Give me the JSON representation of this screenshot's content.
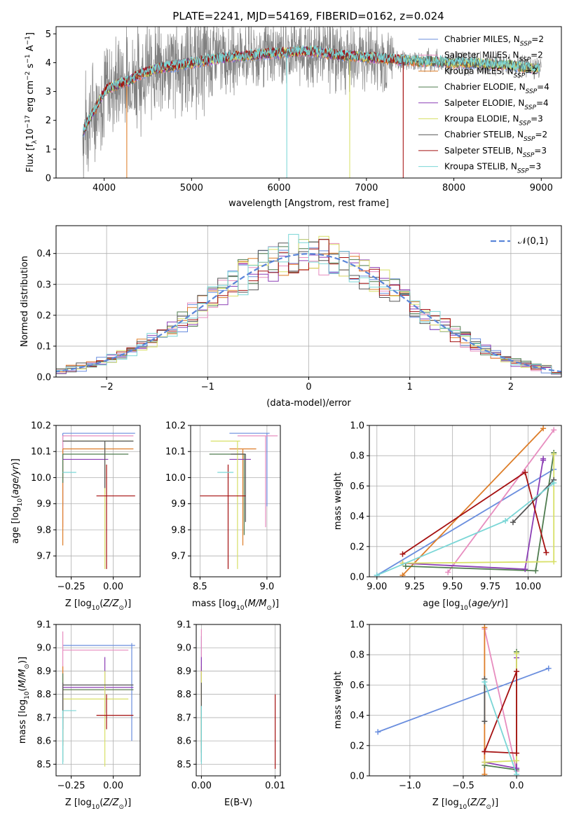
{
  "page": {
    "title": "PLATE=2241, MJD=54169, FIBERID=0162, z=0.024"
  },
  "colors": {
    "models": [
      "#6a8ede",
      "#e78dbf",
      "#dd7d28",
      "#4f7c4f",
      "#8c3fb5",
      "#d8e068",
      "#555555",
      "#a51010",
      "#7ad6d6"
    ],
    "data": "#808080",
    "normal": "#5b86d9",
    "grid": "#b0b0b0"
  },
  "models": [
    {
      "name": "Chabrier MILES",
      "n": "2"
    },
    {
      "name": "Salpeter MILES",
      "n": "2"
    },
    {
      "name": "Kroupa MILES",
      "n": "2"
    },
    {
      "name": "Chabrier ELODIE",
      "n": "4"
    },
    {
      "name": "Salpeter ELODIE",
      "n": "4"
    },
    {
      "name": "Kroupa ELODIE",
      "n": "3"
    },
    {
      "name": "Chabrier STELIB",
      "n": "2"
    },
    {
      "name": "Salpeter STELIB",
      "n": "3"
    },
    {
      "name": "Kroupa STELIB",
      "n": "3"
    }
  ],
  "chart_data": [
    {
      "id": "spectrum",
      "type": "line",
      "title": "PLATE=2241, MJD=54169, FIBERID=0162, z=0.024",
      "xlabel": "wavelength [Angstrom, rest frame]",
      "ylabel": "Flux [f_λ 10^-17 erg cm^-2 s^-1 A^-1]",
      "xlim": [
        3450,
        9230
      ],
      "ylim": [
        0,
        5.25
      ],
      "xticks": [
        4000,
        5000,
        6000,
        7000,
        8000,
        9000
      ],
      "yticks": [
        0,
        1,
        2,
        3,
        4,
        5
      ],
      "continuum": {
        "x": [
          3750,
          3800,
          3850,
          3900,
          3950,
          4000,
          4100,
          4200,
          4300,
          4400,
          4500,
          4600,
          4800,
          5000,
          5200,
          5400,
          5600,
          5800,
          6000,
          6200,
          6400,
          6600,
          6800,
          7000,
          7200,
          7400,
          7600,
          7800,
          8000,
          8200,
          8400,
          8600,
          8800,
          9000
        ],
        "y": [
          1.5,
          1.9,
          2.2,
          2.4,
          2.7,
          3.0,
          3.2,
          3.3,
          3.4,
          3.6,
          3.7,
          3.8,
          3.9,
          4.0,
          4.1,
          4.2,
          4.25,
          4.3,
          4.35,
          4.4,
          4.4,
          4.3,
          4.25,
          4.2,
          4.15,
          4.1,
          4.05,
          4.05,
          4.0,
          4.0,
          3.95,
          3.95,
          3.85,
          3.8
        ]
      },
      "legend": "upper right"
    },
    {
      "id": "residuals",
      "type": "histogram",
      "xlabel": "(data-model)/error",
      "ylabel": "Normed distribution",
      "xlim": [
        -2.5,
        2.5
      ],
      "ylim": [
        0,
        0.49
      ],
      "xticks": [
        -2,
        -1,
        0,
        1,
        2
      ],
      "yticks": [
        0.0,
        0.1,
        0.2,
        0.3,
        0.4
      ],
      "bin_width": 0.1,
      "reference": {
        "name": "𝒩(0,1)",
        "style": "dashed",
        "mean": 0,
        "sigma": 1
      },
      "legend": "upper right"
    },
    {
      "id": "Z_age",
      "type": "errorbar",
      "xlabel": "Z [log10(Z/Z☉)]",
      "ylabel": "age [log10(age/yr)]",
      "xlim": [
        -0.34,
        0.16
      ],
      "ylim": [
        9.62,
        10.2
      ],
      "xticks": [
        -0.25,
        0.0
      ],
      "yticks": [
        9.7,
        9.8,
        9.9,
        10.0,
        10.1,
        10.2
      ],
      "points": [
        {
          "x": -0.3,
          "xlo": -0.3,
          "xhi": 0.13,
          "y": 10.17,
          "ylo": 9.89,
          "yhi": 10.17
        },
        {
          "x": -0.3,
          "xlo": -0.3,
          "xhi": 0.12,
          "y": 10.16,
          "ylo": 9.81,
          "yhi": 10.16
        },
        {
          "x": -0.3,
          "xlo": -0.3,
          "xhi": 0.12,
          "y": 10.11,
          "ylo": 9.74,
          "yhi": 10.11
        },
        {
          "x": -0.3,
          "xlo": -0.3,
          "xhi": 0.09,
          "y": 10.09,
          "ylo": 9.98,
          "yhi": 10.09
        },
        {
          "x": -0.3,
          "xlo": -0.3,
          "xhi": -0.03,
          "y": 10.07,
          "ylo": 10.07,
          "yhi": 10.07
        },
        {
          "x": -0.05,
          "xlo": -0.3,
          "xhi": 0.12,
          "y": 10.14,
          "ylo": 9.65,
          "yhi": 10.14
        },
        {
          "x": -0.05,
          "xlo": -0.3,
          "xhi": 0.12,
          "y": 10.14,
          "ylo": 9.96,
          "yhi": 10.14
        },
        {
          "x": -0.04,
          "xlo": -0.1,
          "xhi": 0.13,
          "y": 9.93,
          "ylo": 9.65,
          "yhi": 10.05
        },
        {
          "x": -0.3,
          "xlo": -0.3,
          "xhi": -0.22,
          "y": 10.02,
          "ylo": 10.02,
          "yhi": 10.02
        }
      ]
    },
    {
      "id": "mass_age",
      "type": "errorbar",
      "xlabel": "mass [log10(M/M☉)]",
      "ylabel": "",
      "xlim": [
        8.43,
        9.1
      ],
      "ylim": [
        9.62,
        10.2
      ],
      "xticks": [
        8.5,
        9.0
      ],
      "yticks": [
        9.7,
        9.8,
        9.9,
        10.0,
        10.1,
        10.2
      ],
      "points": [
        {
          "x": 9.0,
          "xlo": 8.72,
          "xhi": 9.02,
          "y": 10.17,
          "ylo": 9.89,
          "yhi": 10.17
        },
        {
          "x": 8.99,
          "xlo": 8.78,
          "xhi": 9.08,
          "y": 10.16,
          "ylo": 9.81,
          "yhi": 10.16
        },
        {
          "x": 8.82,
          "xlo": 8.72,
          "xhi": 8.92,
          "y": 10.11,
          "ylo": 9.74,
          "yhi": 10.11
        },
        {
          "x": 8.83,
          "xlo": 8.57,
          "xhi": 8.84,
          "y": 10.09,
          "ylo": 9.78,
          "yhi": 10.09
        },
        {
          "x": 8.83,
          "xlo": 8.72,
          "xhi": 8.88,
          "y": 10.07,
          "ylo": 10.07,
          "yhi": 10.07
        },
        {
          "x": 8.78,
          "xlo": 8.58,
          "xhi": 8.8,
          "y": 10.14,
          "ylo": 9.65,
          "yhi": 10.14
        },
        {
          "x": 8.84,
          "xlo": 8.73,
          "xhi": 8.84,
          "y": 10.09,
          "ylo": 9.83,
          "yhi": 10.09
        },
        {
          "x": 8.71,
          "xlo": 8.5,
          "xhi": 8.84,
          "y": 9.93,
          "ylo": 9.65,
          "yhi": 10.05
        },
        {
          "x": 8.73,
          "xlo": 8.63,
          "xhi": 8.75,
          "y": 10.02,
          "ylo": 10.02,
          "yhi": 10.02
        }
      ]
    },
    {
      "id": "age_weight",
      "type": "line",
      "xlabel": "age [log10(age/yr)]",
      "ylabel": "mass weight",
      "xlim": [
        8.95,
        10.22
      ],
      "ylim": [
        0,
        1
      ],
      "xticks": [
        9.0,
        9.25,
        9.5,
        9.75,
        10.0
      ],
      "yticks": [
        0.0,
        0.2,
        0.4,
        0.6,
        0.8,
        1.0
      ],
      "series": [
        {
          "x": [
            9.0,
            10.17
          ],
          "y": [
            0.01,
            0.71
          ]
        },
        {
          "x": [
            9.47,
            10.17
          ],
          "y": [
            0.03,
            0.97
          ]
        },
        {
          "x": [
            9.17,
            10.1
          ],
          "y": [
            0.01,
            0.98
          ]
        },
        {
          "x": [
            9.19,
            10.05,
            10.17
          ],
          "y": [
            0.07,
            0.04,
            0.82
          ]
        },
        {
          "x": [
            9.17,
            9.98,
            10.1,
            10.1
          ],
          "y": [
            0.09,
            0.05,
            0.78,
            0.77
          ]
        },
        {
          "x": [
            9.17,
            10.17,
            10.17
          ],
          "y": [
            0.09,
            0.1,
            0.81
          ]
        },
        {
          "x": [
            9.9,
            10.17
          ],
          "y": [
            0.36,
            0.64
          ]
        },
        {
          "x": [
            9.17,
            9.98,
            10.12
          ],
          "y": [
            0.15,
            0.69,
            0.16
          ]
        },
        {
          "x": [
            9.0,
            9.85,
            10.17
          ],
          "y": [
            0.01,
            0.37,
            0.62
          ]
        }
      ]
    },
    {
      "id": "Z_mass",
      "type": "errorbar",
      "xlabel": "Z [log10(Z/Z☉)]",
      "ylabel": "mass [log10(M/M☉)]",
      "xlim": [
        -0.34,
        0.16
      ],
      "ylim": [
        8.45,
        9.1
      ],
      "xticks": [
        -0.25,
        0.0
      ],
      "yticks": [
        8.5,
        8.6,
        8.7,
        8.8,
        8.9,
        9.0,
        9.1
      ],
      "points": [
        {
          "x": 0.11,
          "xlo": -0.3,
          "xhi": 0.13,
          "y": 9.01,
          "ylo": 8.6,
          "yhi": 9.02
        },
        {
          "x": -0.3,
          "xlo": -0.3,
          "xhi": 0.09,
          "y": 8.99,
          "ylo": 8.68,
          "yhi": 9.07
        },
        {
          "x": -0.3,
          "xlo": -0.3,
          "xhi": 0.12,
          "y": 8.82,
          "ylo": 8.58,
          "yhi": 8.92
        },
        {
          "x": -0.3,
          "xlo": -0.3,
          "xhi": 0.12,
          "y": 8.82,
          "ylo": 8.51,
          "yhi": 8.89
        },
        {
          "x": -0.05,
          "xlo": -0.3,
          "xhi": 0.12,
          "y": 8.83,
          "ylo": 8.72,
          "yhi": 8.96
        },
        {
          "x": -0.05,
          "xlo": -0.3,
          "xhi": 0.09,
          "y": 8.78,
          "ylo": 8.49,
          "yhi": 8.9
        },
        {
          "x": -0.3,
          "xlo": -0.3,
          "xhi": 0.12,
          "y": 8.84,
          "ylo": 8.65,
          "yhi": 8.85
        },
        {
          "x": -0.04,
          "xlo": -0.1,
          "xhi": 0.12,
          "y": 8.71,
          "ylo": 8.65,
          "yhi": 8.8
        },
        {
          "x": -0.3,
          "xlo": -0.3,
          "xhi": -0.22,
          "y": 8.73,
          "ylo": 8.5,
          "yhi": 8.73
        }
      ]
    },
    {
      "id": "ebv_mass",
      "type": "errorbar",
      "xlabel": "E(B-V)",
      "ylabel": "",
      "xlim": [
        -0.0007,
        0.0107
      ],
      "ylim": [
        8.45,
        9.1
      ],
      "xticks": [
        0.0,
        0.01
      ],
      "yticks": [
        8.5,
        8.6,
        8.7,
        8.8,
        8.9,
        9.0,
        9.1
      ],
      "points": [
        {
          "x": 0.0,
          "y": 9.0,
          "ylo": 8.6,
          "yhi": 9.05
        },
        {
          "x": 0.0,
          "y": 8.99,
          "ylo": 8.6,
          "yhi": 9.08
        },
        {
          "x": 0.0,
          "y": 8.82,
          "ylo": 8.58,
          "yhi": 8.92
        },
        {
          "x": 0.0,
          "y": 8.82,
          "ylo": 8.55,
          "yhi": 8.89
        },
        {
          "x": 0.0,
          "y": 8.93,
          "ylo": 8.72,
          "yhi": 8.96
        },
        {
          "x": 0.0,
          "y": 8.78,
          "ylo": 8.6,
          "yhi": 8.9
        },
        {
          "x": 0.0,
          "y": 8.84,
          "ylo": 8.51,
          "yhi": 8.85
        },
        {
          "x": 0.01,
          "y": 8.71,
          "ylo": 8.48,
          "yhi": 8.8
        },
        {
          "x": 0.0,
          "y": 8.73,
          "ylo": 8.5,
          "yhi": 8.75
        }
      ]
    },
    {
      "id": "Z_weight",
      "type": "line",
      "xlabel": "Z [log10(Z/Z☉)]",
      "ylabel": "mass weight",
      "xlim": [
        -1.38,
        0.42
      ],
      "ylim": [
        0,
        1
      ],
      "xticks": [
        -1.0,
        -0.5,
        0.0
      ],
      "yticks": [
        0.0,
        0.2,
        0.4,
        0.6,
        0.8,
        1.0
      ],
      "series": [
        {
          "x": [
            -1.3,
            0.3
          ],
          "y": [
            0.29,
            0.71
          ]
        },
        {
          "x": [
            -0.3,
            0.0
          ],
          "y": [
            0.97,
            0.03
          ]
        },
        {
          "x": [
            -0.3,
            -0.3
          ],
          "y": [
            0.01,
            0.98
          ]
        },
        {
          "x": [
            -0.3,
            0.0,
            0.0
          ],
          "y": [
            0.07,
            0.04,
            0.82
          ]
        },
        {
          "x": [
            -0.3,
            0.0,
            0.0
          ],
          "y": [
            0.09,
            0.05,
            0.78
          ]
        },
        {
          "x": [
            -0.3,
            0.0,
            0.0
          ],
          "y": [
            0.09,
            0.1,
            0.81
          ]
        },
        {
          "x": [
            -0.3,
            -0.3
          ],
          "y": [
            0.36,
            0.64
          ]
        },
        {
          "x": [
            -0.3,
            0.0,
            0.0,
            -0.3
          ],
          "y": [
            0.16,
            0.15,
            0.69,
            0.16
          ]
        },
        {
          "x": [
            -0.3,
            0.0
          ],
          "y": [
            0.62,
            0.01
          ]
        }
      ]
    }
  ]
}
